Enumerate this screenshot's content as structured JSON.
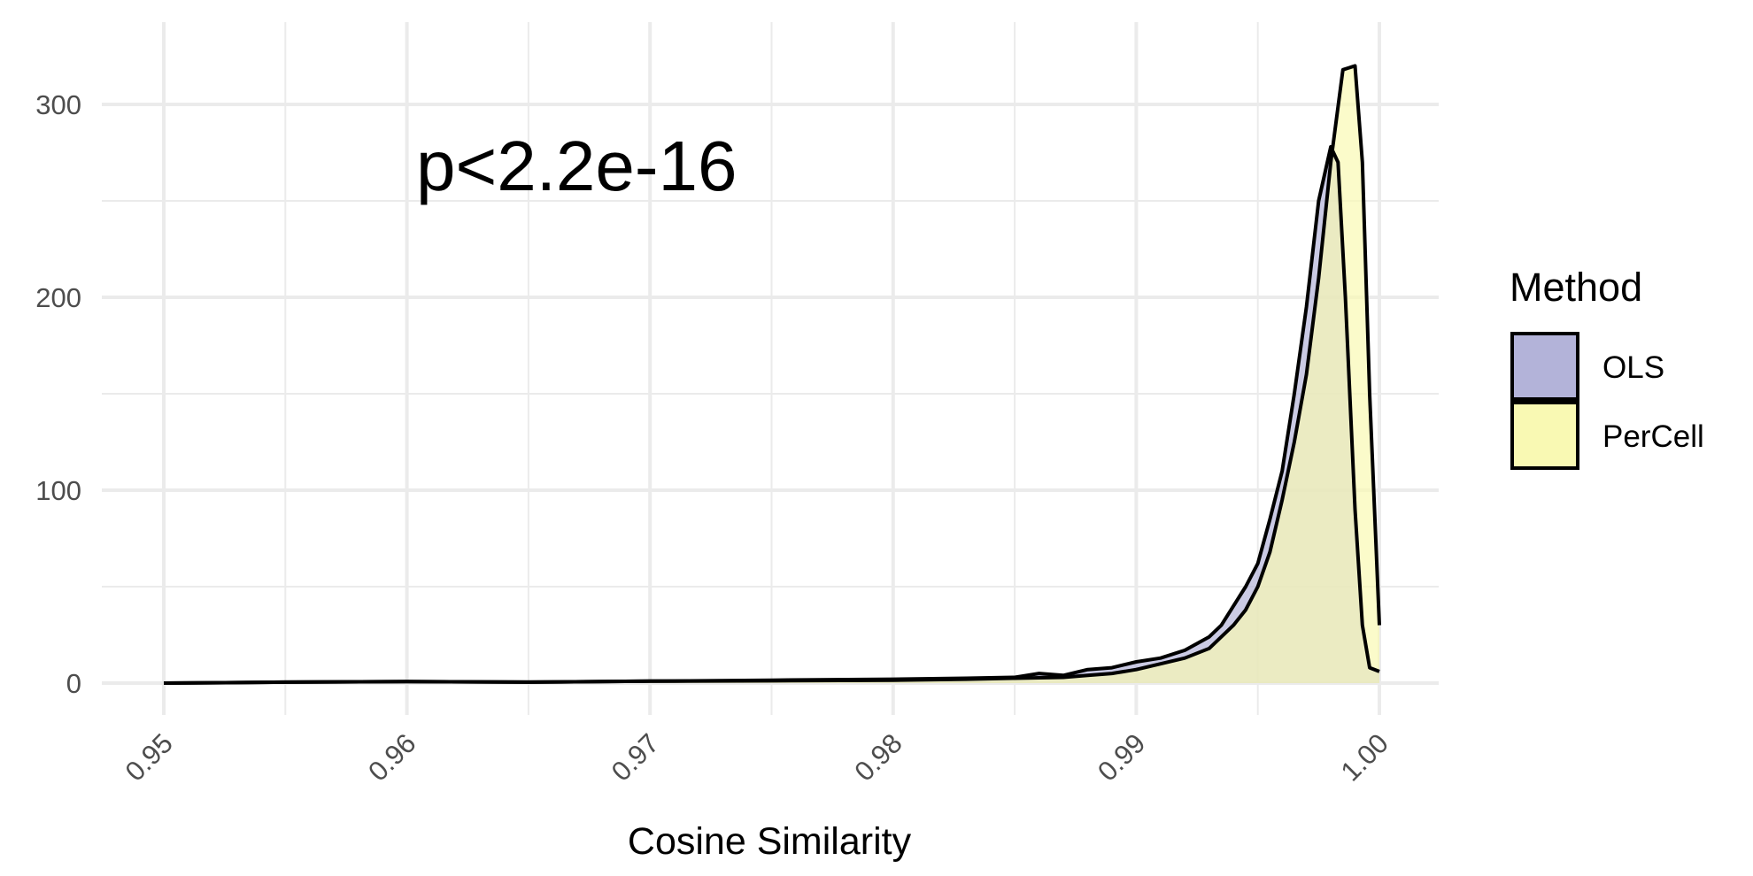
{
  "chart_data": {
    "type": "area",
    "xlabel": "Cosine Similarity",
    "ylabel": "",
    "xlim": [
      0.95,
      1.0
    ],
    "ylim": [
      0,
      300
    ],
    "x_ticks": [
      0.95,
      0.96,
      0.97,
      0.98,
      0.99,
      1.0
    ],
    "x_tick_labels": [
      "0.95",
      "0.96",
      "0.97",
      "0.98",
      "0.99",
      "1.00"
    ],
    "y_ticks": [
      0,
      100,
      200,
      300
    ],
    "y_tick_labels": [
      "0",
      "100",
      "200",
      "300"
    ],
    "annotation": "p<2.2e-16",
    "grid": true,
    "legend": {
      "title": "Method",
      "position": "right"
    },
    "series": [
      {
        "name": "OLS",
        "fill": "#b3b3d9",
        "x": [
          0.95,
          0.955,
          0.96,
          0.965,
          0.97,
          0.975,
          0.98,
          0.983,
          0.985,
          0.986,
          0.987,
          0.988,
          0.989,
          0.99,
          0.991,
          0.992,
          0.993,
          0.9935,
          0.994,
          0.9945,
          0.995,
          0.9955,
          0.996,
          0.9965,
          0.997,
          0.9975,
          0.998,
          0.9983,
          0.9986,
          0.999,
          0.9993,
          0.9996,
          1.0
        ],
        "y": [
          0,
          0.5,
          0.8,
          0.5,
          1,
          1.5,
          2,
          2.5,
          3,
          5,
          4,
          7,
          8,
          11,
          13,
          17,
          24,
          30,
          40,
          50,
          62,
          85,
          110,
          150,
          195,
          250,
          278,
          270,
          200,
          90,
          30,
          8,
          6
        ]
      },
      {
        "name": "PerCell",
        "fill": "#f9f9b3",
        "x": [
          0.95,
          0.955,
          0.96,
          0.965,
          0.97,
          0.975,
          0.98,
          0.983,
          0.985,
          0.987,
          0.988,
          0.989,
          0.99,
          0.991,
          0.992,
          0.993,
          0.994,
          0.9945,
          0.995,
          0.9955,
          0.996,
          0.9965,
          0.997,
          0.9975,
          0.998,
          0.9985,
          0.999,
          0.9993,
          0.9996,
          1.0
        ],
        "y": [
          0,
          0.5,
          0.8,
          0.5,
          1,
          1.2,
          1.5,
          2,
          2.5,
          3,
          4,
          5,
          7,
          10,
          13,
          18,
          30,
          38,
          50,
          68,
          95,
          125,
          160,
          210,
          270,
          318,
          320,
          270,
          150,
          30
        ]
      }
    ]
  }
}
